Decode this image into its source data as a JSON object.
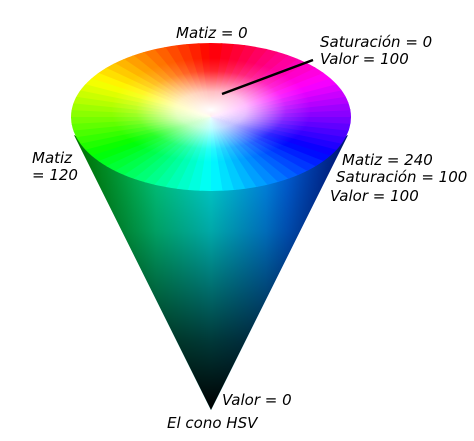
{
  "labels": {
    "top_hue": "Matiz = 0",
    "top_sat": "Saturación = 0",
    "top_val": "Valor = 100",
    "left_hue_1": "Matiz",
    "left_hue_2": "= 120",
    "right_hue": "Matiz = 240",
    "right_sat": "Saturación = 100",
    "right_val": "Valor = 100",
    "bottom_val": "Valor = 0",
    "caption": "El cono HSV"
  },
  "colors": {
    "red": "#ff0000",
    "green": "#00ff00",
    "blue": "#0000ff",
    "cyan": "#00ffff",
    "magenta": "#ff00ff",
    "yellow": "#ffff00",
    "apex": "#000000"
  }
}
